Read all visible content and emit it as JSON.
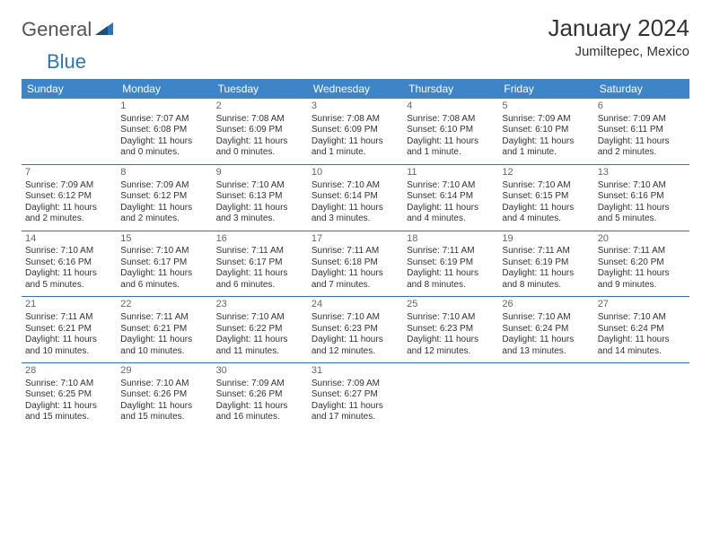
{
  "logo": {
    "text1": "General",
    "text2": "Blue"
  },
  "title": "January 2024",
  "location": "Jumiltepec, Mexico",
  "colors": {
    "header_bg": "#3d85c6",
    "header_text": "#ffffff",
    "row_border": "#2e75b6",
    "body_text": "#333333",
    "daynum_text": "#666666",
    "logo_gray": "#555555",
    "logo_blue": "#2e75b6",
    "page_bg": "#ffffff"
  },
  "fonts": {
    "title_pt": 26,
    "location_pt": 15,
    "header_pt": 12,
    "daynum_pt": 11,
    "cell_pt": 10
  },
  "days": [
    "Sunday",
    "Monday",
    "Tuesday",
    "Wednesday",
    "Thursday",
    "Friday",
    "Saturday"
  ],
  "weeks": [
    [
      {
        "n": "",
        "lines": []
      },
      {
        "n": "1",
        "lines": [
          "Sunrise: 7:07 AM",
          "Sunset: 6:08 PM",
          "Daylight: 11 hours and 0 minutes."
        ]
      },
      {
        "n": "2",
        "lines": [
          "Sunrise: 7:08 AM",
          "Sunset: 6:09 PM",
          "Daylight: 11 hours and 0 minutes."
        ]
      },
      {
        "n": "3",
        "lines": [
          "Sunrise: 7:08 AM",
          "Sunset: 6:09 PM",
          "Daylight: 11 hours and 1 minute."
        ]
      },
      {
        "n": "4",
        "lines": [
          "Sunrise: 7:08 AM",
          "Sunset: 6:10 PM",
          "Daylight: 11 hours and 1 minute."
        ]
      },
      {
        "n": "5",
        "lines": [
          "Sunrise: 7:09 AM",
          "Sunset: 6:10 PM",
          "Daylight: 11 hours and 1 minute."
        ]
      },
      {
        "n": "6",
        "lines": [
          "Sunrise: 7:09 AM",
          "Sunset: 6:11 PM",
          "Daylight: 11 hours and 2 minutes."
        ]
      }
    ],
    [
      {
        "n": "7",
        "lines": [
          "Sunrise: 7:09 AM",
          "Sunset: 6:12 PM",
          "Daylight: 11 hours and 2 minutes."
        ]
      },
      {
        "n": "8",
        "lines": [
          "Sunrise: 7:09 AM",
          "Sunset: 6:12 PM",
          "Daylight: 11 hours and 2 minutes."
        ]
      },
      {
        "n": "9",
        "lines": [
          "Sunrise: 7:10 AM",
          "Sunset: 6:13 PM",
          "Daylight: 11 hours and 3 minutes."
        ]
      },
      {
        "n": "10",
        "lines": [
          "Sunrise: 7:10 AM",
          "Sunset: 6:14 PM",
          "Daylight: 11 hours and 3 minutes."
        ]
      },
      {
        "n": "11",
        "lines": [
          "Sunrise: 7:10 AM",
          "Sunset: 6:14 PM",
          "Daylight: 11 hours and 4 minutes."
        ]
      },
      {
        "n": "12",
        "lines": [
          "Sunrise: 7:10 AM",
          "Sunset: 6:15 PM",
          "Daylight: 11 hours and 4 minutes."
        ]
      },
      {
        "n": "13",
        "lines": [
          "Sunrise: 7:10 AM",
          "Sunset: 6:16 PM",
          "Daylight: 11 hours and 5 minutes."
        ]
      }
    ],
    [
      {
        "n": "14",
        "lines": [
          "Sunrise: 7:10 AM",
          "Sunset: 6:16 PM",
          "Daylight: 11 hours and 5 minutes."
        ]
      },
      {
        "n": "15",
        "lines": [
          "Sunrise: 7:10 AM",
          "Sunset: 6:17 PM",
          "Daylight: 11 hours and 6 minutes."
        ]
      },
      {
        "n": "16",
        "lines": [
          "Sunrise: 7:11 AM",
          "Sunset: 6:17 PM",
          "Daylight: 11 hours and 6 minutes."
        ]
      },
      {
        "n": "17",
        "lines": [
          "Sunrise: 7:11 AM",
          "Sunset: 6:18 PM",
          "Daylight: 11 hours and 7 minutes."
        ]
      },
      {
        "n": "18",
        "lines": [
          "Sunrise: 7:11 AM",
          "Sunset: 6:19 PM",
          "Daylight: 11 hours and 8 minutes."
        ]
      },
      {
        "n": "19",
        "lines": [
          "Sunrise: 7:11 AM",
          "Sunset: 6:19 PM",
          "Daylight: 11 hours and 8 minutes."
        ]
      },
      {
        "n": "20",
        "lines": [
          "Sunrise: 7:11 AM",
          "Sunset: 6:20 PM",
          "Daylight: 11 hours and 9 minutes."
        ]
      }
    ],
    [
      {
        "n": "21",
        "lines": [
          "Sunrise: 7:11 AM",
          "Sunset: 6:21 PM",
          "Daylight: 11 hours and 10 minutes."
        ]
      },
      {
        "n": "22",
        "lines": [
          "Sunrise: 7:11 AM",
          "Sunset: 6:21 PM",
          "Daylight: 11 hours and 10 minutes."
        ]
      },
      {
        "n": "23",
        "lines": [
          "Sunrise: 7:10 AM",
          "Sunset: 6:22 PM",
          "Daylight: 11 hours and 11 minutes."
        ]
      },
      {
        "n": "24",
        "lines": [
          "Sunrise: 7:10 AM",
          "Sunset: 6:23 PM",
          "Daylight: 11 hours and 12 minutes."
        ]
      },
      {
        "n": "25",
        "lines": [
          "Sunrise: 7:10 AM",
          "Sunset: 6:23 PM",
          "Daylight: 11 hours and 12 minutes."
        ]
      },
      {
        "n": "26",
        "lines": [
          "Sunrise: 7:10 AM",
          "Sunset: 6:24 PM",
          "Daylight: 11 hours and 13 minutes."
        ]
      },
      {
        "n": "27",
        "lines": [
          "Sunrise: 7:10 AM",
          "Sunset: 6:24 PM",
          "Daylight: 11 hours and 14 minutes."
        ]
      }
    ],
    [
      {
        "n": "28",
        "lines": [
          "Sunrise: 7:10 AM",
          "Sunset: 6:25 PM",
          "Daylight: 11 hours and 15 minutes."
        ]
      },
      {
        "n": "29",
        "lines": [
          "Sunrise: 7:10 AM",
          "Sunset: 6:26 PM",
          "Daylight: 11 hours and 15 minutes."
        ]
      },
      {
        "n": "30",
        "lines": [
          "Sunrise: 7:09 AM",
          "Sunset: 6:26 PM",
          "Daylight: 11 hours and 16 minutes."
        ]
      },
      {
        "n": "31",
        "lines": [
          "Sunrise: 7:09 AM",
          "Sunset: 6:27 PM",
          "Daylight: 11 hours and 17 minutes."
        ]
      },
      {
        "n": "",
        "lines": []
      },
      {
        "n": "",
        "lines": []
      },
      {
        "n": "",
        "lines": []
      }
    ]
  ]
}
